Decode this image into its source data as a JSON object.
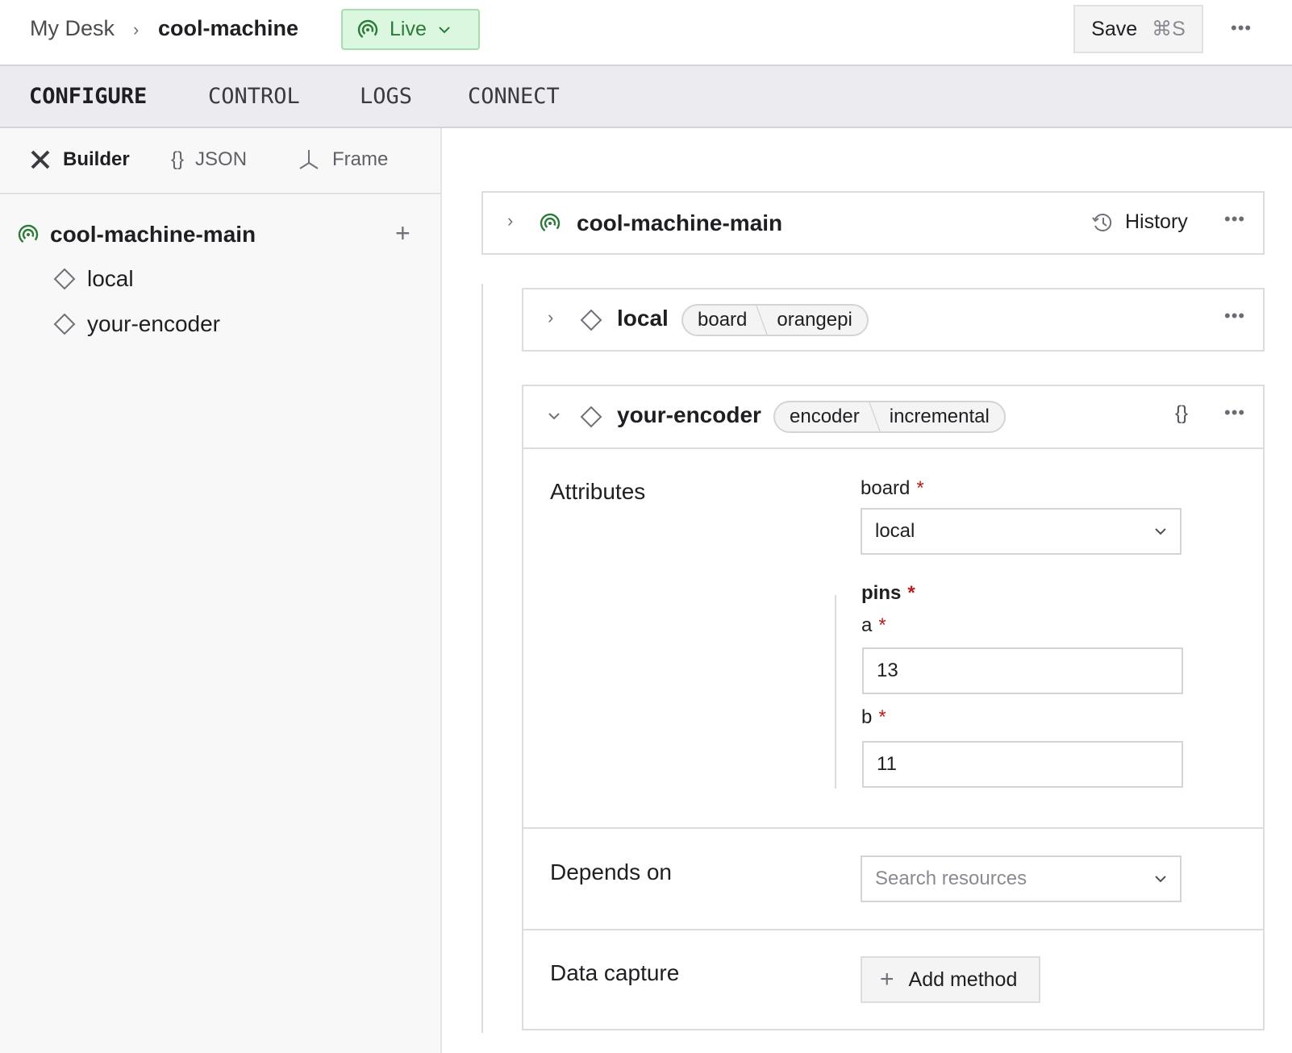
{
  "header": {
    "breadcrumb_root": "My Desk",
    "breadcrumb_current": "cool-machine",
    "status": "Live",
    "save_label": "Save",
    "save_shortcut": "⌘S"
  },
  "tabs": [
    {
      "label": "CONFIGURE",
      "active": true
    },
    {
      "label": "CONTROL"
    },
    {
      "label": "LOGS"
    },
    {
      "label": "CONNECT"
    }
  ],
  "subtabs": [
    {
      "label": "Builder",
      "icon": "tools-icon",
      "active": true
    },
    {
      "label": "JSON",
      "icon": "braces-icon"
    },
    {
      "label": "Frame",
      "icon": "axes-icon"
    }
  ],
  "tree": {
    "root": "cool-machine-main",
    "items": [
      "local",
      "your-encoder"
    ]
  },
  "main": {
    "part": {
      "name": "cool-machine-main",
      "history_label": "History"
    },
    "components": [
      {
        "name": "local",
        "api": "board",
        "model": "orangepi"
      },
      {
        "name": "your-encoder",
        "api": "encoder",
        "model": "incremental",
        "attributes_title": "Attributes",
        "board_label": "board",
        "board_value": "local",
        "pins_label": "pins",
        "a_label": "a",
        "a_value": "13",
        "b_label": "b",
        "b_value": "11",
        "depends_title": "Depends on",
        "depends_placeholder": "Search resources",
        "capture_title": "Data capture",
        "add_method_label": "Add method"
      }
    ]
  },
  "colors": {
    "live_bg": "#dcf7df",
    "live_text": "#2c7a37",
    "required": "#b91c1c"
  }
}
